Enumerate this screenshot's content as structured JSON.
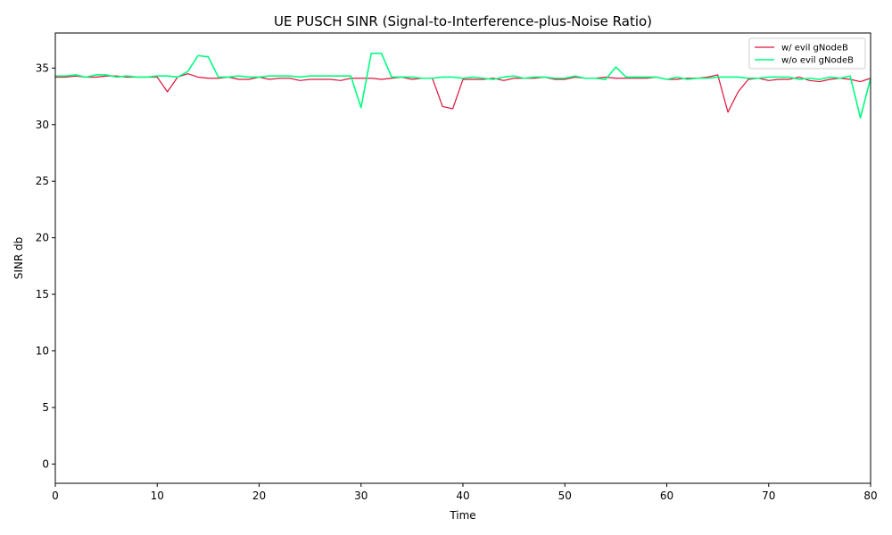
{
  "chart_data": {
    "type": "line",
    "title": "UE PUSCH SINR (Signal-to-Interference-plus-Noise Ratio)",
    "xlabel": "Time",
    "ylabel": "SINR db",
    "xlim": [
      0,
      80
    ],
    "ylim": [
      -1.7,
      38.1
    ],
    "xticks": [
      0,
      10,
      20,
      30,
      40,
      50,
      60,
      70,
      80
    ],
    "yticks": [
      0,
      5,
      10,
      15,
      20,
      25,
      30,
      35
    ],
    "grid": false,
    "legend": "top-right",
    "x": [
      0,
      1,
      2,
      3,
      4,
      5,
      6,
      7,
      8,
      9,
      10,
      11,
      12,
      13,
      14,
      15,
      16,
      17,
      18,
      19,
      20,
      21,
      22,
      23,
      24,
      25,
      26,
      27,
      28,
      29,
      30,
      31,
      32,
      33,
      34,
      35,
      36,
      37,
      38,
      39,
      40,
      41,
      42,
      43,
      44,
      45,
      46,
      47,
      48,
      49,
      50,
      51,
      52,
      53,
      54,
      55,
      56,
      57,
      58,
      59,
      60,
      61,
      62,
      63,
      64,
      65,
      66,
      67,
      68,
      69,
      70,
      71,
      72,
      73,
      74,
      75,
      76,
      77,
      78,
      79,
      80
    ],
    "series": [
      {
        "name": "w/ evil gNodeB",
        "color": "#dc143c",
        "values": [
          34.2,
          34.2,
          34.3,
          34.2,
          34.2,
          34.3,
          34.3,
          34.2,
          34.2,
          34.2,
          34.2,
          32.9,
          34.2,
          34.5,
          34.2,
          34.1,
          34.1,
          34.2,
          34.0,
          34.0,
          34.2,
          34.0,
          34.1,
          34.1,
          33.9,
          34.0,
          34.0,
          34.0,
          33.9,
          34.1,
          34.1,
          34.1,
          34.0,
          34.1,
          34.2,
          34.0,
          34.1,
          34.1,
          31.6,
          31.4,
          34.0,
          34.0,
          34.0,
          34.1,
          33.9,
          34.1,
          34.1,
          34.1,
          34.2,
          34.0,
          34.0,
          34.2,
          34.1,
          34.1,
          34.2,
          34.1,
          34.1,
          34.1,
          34.1,
          34.2,
          34.0,
          34.0,
          34.1,
          34.1,
          34.2,
          34.4,
          31.1,
          32.9,
          34.0,
          34.1,
          33.9,
          34.0,
          34.0,
          34.2,
          33.9,
          33.8,
          34.0,
          34.1,
          34.0,
          33.8,
          34.1
        ]
      },
      {
        "name": "w/o evil gNodeB",
        "color": "#00ff7f",
        "values": [
          34.3,
          34.3,
          34.4,
          34.2,
          34.4,
          34.4,
          34.2,
          34.3,
          34.2,
          34.2,
          34.3,
          34.3,
          34.2,
          34.7,
          36.1,
          36.0,
          34.2,
          34.2,
          34.3,
          34.2,
          34.2,
          34.3,
          34.3,
          34.3,
          34.2,
          34.3,
          34.3,
          34.3,
          34.3,
          34.3,
          31.5,
          36.3,
          36.3,
          34.2,
          34.2,
          34.2,
          34.1,
          34.1,
          34.2,
          34.2,
          34.1,
          34.2,
          34.1,
          34.0,
          34.2,
          34.3,
          34.1,
          34.2,
          34.2,
          34.1,
          34.1,
          34.3,
          34.1,
          34.1,
          34.0,
          35.1,
          34.2,
          34.2,
          34.2,
          34.2,
          34.0,
          34.2,
          34.0,
          34.1,
          34.1,
          34.2,
          34.2,
          34.2,
          34.1,
          34.1,
          34.2,
          34.2,
          34.2,
          34.0,
          34.1,
          34.0,
          34.2,
          34.1,
          34.3,
          30.6,
          34.1
        ]
      }
    ]
  }
}
